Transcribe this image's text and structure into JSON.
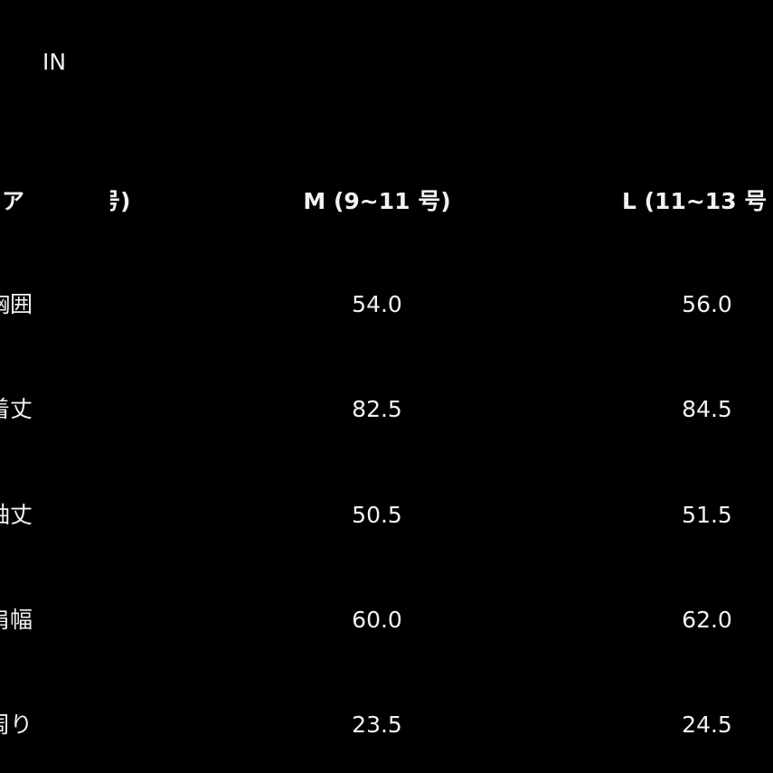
{
  "title": "IN",
  "header": {
    "col0_left": "ア",
    "col0_right": "号)",
    "col1": "M (9~11 号)",
    "col2": "L (11~13 号"
  },
  "rows": [
    {
      "label": "胸囲",
      "m": "54.0",
      "l": "56.0"
    },
    {
      "label": "着丈",
      "m": "82.5",
      "l": "84.5"
    },
    {
      "label": "袖丈",
      "m": "50.5",
      "l": "51.5"
    },
    {
      "label": "肩幅",
      "m": "60.0",
      "l": "62.0"
    },
    {
      "label": "袖周り",
      "m": "23.5",
      "l": "24.5"
    }
  ]
}
